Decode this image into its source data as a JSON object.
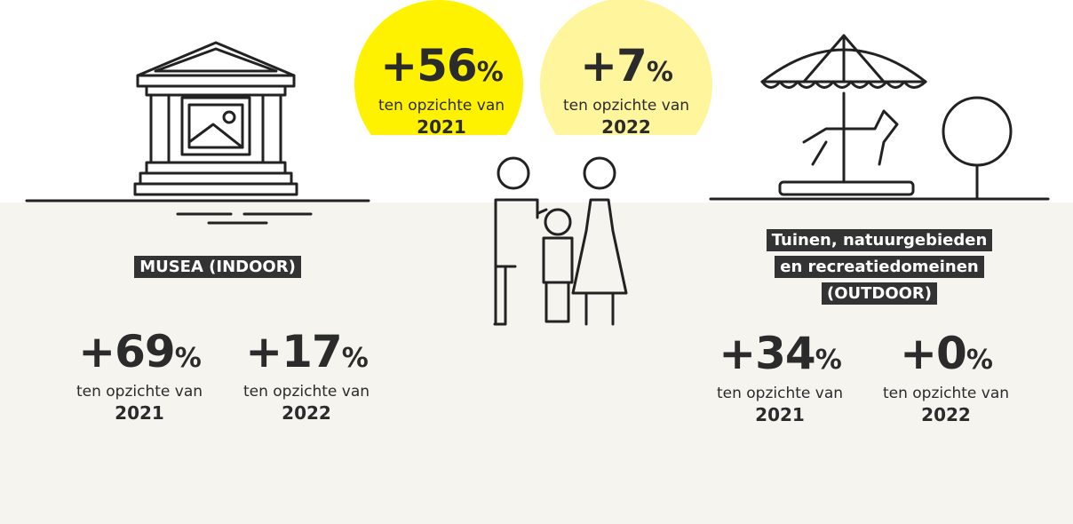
{
  "center": {
    "stats": [
      {
        "change": "+56",
        "unit": "%",
        "caption": "ten opzichte van",
        "year": "2021"
      },
      {
        "change": "+7",
        "unit": "%",
        "caption": "ten opzichte van",
        "year": "2022"
      }
    ]
  },
  "left": {
    "label": "MUSEA (INDOOR)",
    "stats": [
      {
        "change": "+69",
        "unit": "%",
        "caption": "ten opzichte van",
        "year": "2021"
      },
      {
        "change": "+17",
        "unit": "%",
        "caption": "ten opzichte van",
        "year": "2022"
      }
    ]
  },
  "right": {
    "label_lines": [
      "Tuinen, natuurgebieden",
      "en recreatiedomeinen",
      "(OUTDOOR)"
    ],
    "stats": [
      {
        "change": "+34",
        "unit": "%",
        "caption": "ten opzichte van",
        "year": "2021"
      },
      {
        "change": "+0",
        "unit": "%",
        "caption": "ten opzichte van",
        "year": "2022"
      }
    ]
  }
}
